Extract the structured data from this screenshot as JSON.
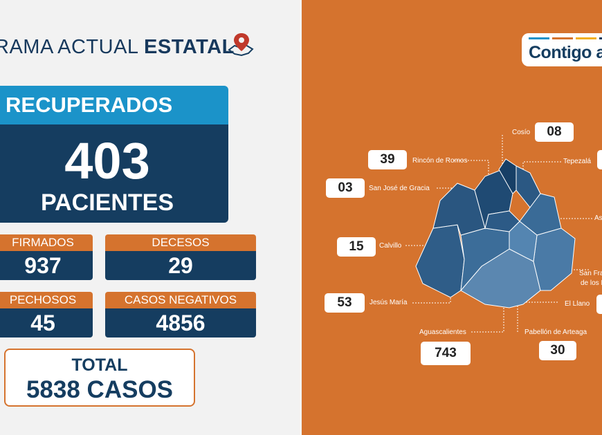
{
  "header": {
    "title_regular": "RAMA ACTUAL ",
    "title_bold": "ESTATAL"
  },
  "recuperados": {
    "label": "RECUPERADOS",
    "value": "403",
    "unit": "PACIENTES"
  },
  "stats": [
    {
      "label": "FIRMADOS",
      "value": "937"
    },
    {
      "label": "DECESOS",
      "value": "29"
    },
    {
      "label": "PECHOSOS",
      "value": "45"
    },
    {
      "label": "CASOS NEGATIVOS",
      "value": "4856"
    }
  ],
  "total": {
    "label": "TOTAL",
    "value": "5838 CASOS"
  },
  "logo": {
    "text": "Contigo a"
  },
  "municipios": [
    {
      "name": "Cosío",
      "value": "08"
    },
    {
      "name": "Rincón de Romos",
      "value": "39"
    },
    {
      "name": "Tepezalá",
      "value": ""
    },
    {
      "name": "San José de Gracia",
      "value": "03"
    },
    {
      "name": "Asi",
      "value": ""
    },
    {
      "name": "Calvillo",
      "value": "15"
    },
    {
      "name": "San Fran",
      "value": ""
    },
    {
      "name": "de los F",
      "value": ""
    },
    {
      "name": "Jesús María",
      "value": "53"
    },
    {
      "name": "El Llano",
      "value": ""
    },
    {
      "name": "Aguascalientes",
      "value": "743"
    },
    {
      "name": "Pabellón de Arteaga",
      "value": "30"
    }
  ],
  "colors": {
    "navy": "#153d60",
    "blue": "#1b93c9",
    "orange": "#d5732e"
  }
}
